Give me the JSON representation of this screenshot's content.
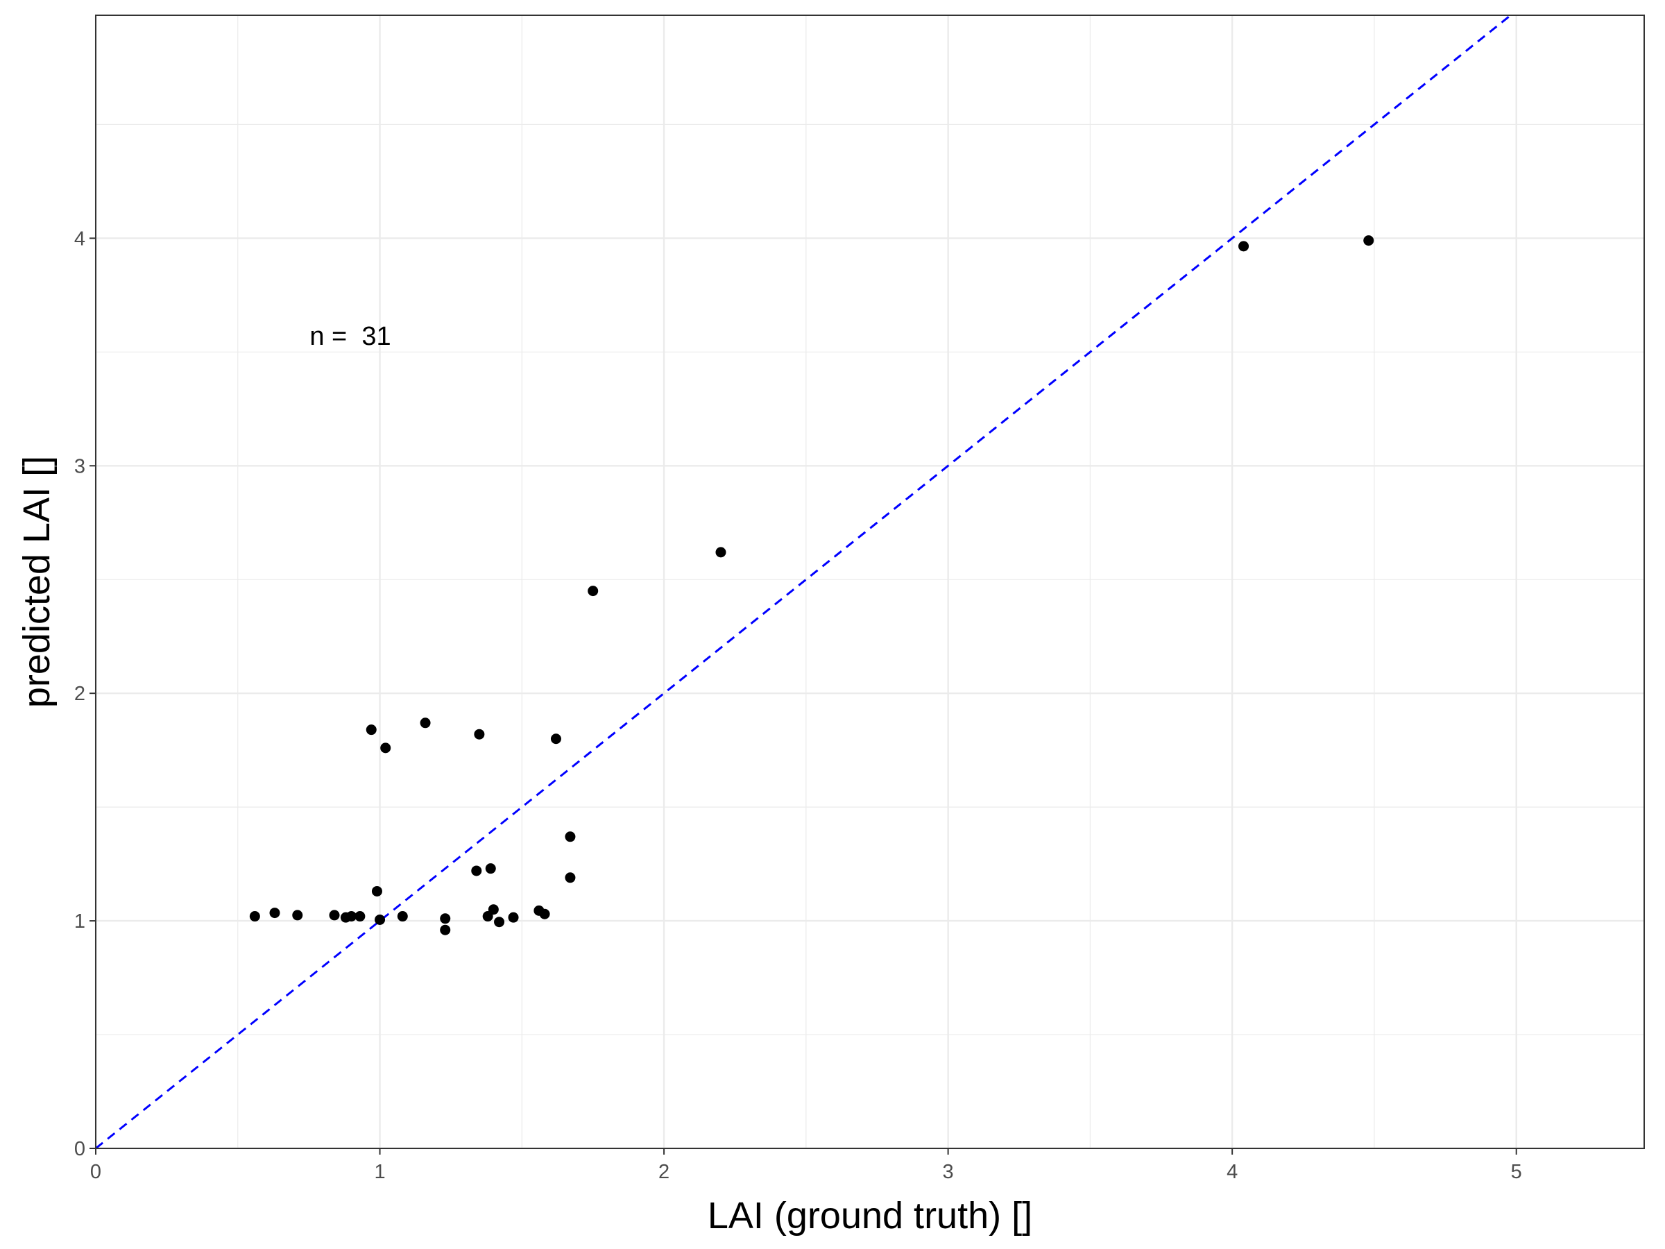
{
  "chart_data": {
    "type": "scatter",
    "title": "",
    "xlabel": "LAI (ground truth) []",
    "ylabel": "predicted LAI []",
    "xlim": [
      0,
      5.45
    ],
    "ylim": [
      0,
      4.98
    ],
    "x_ticks": [
      0,
      1,
      2,
      3,
      4,
      5
    ],
    "y_ticks": [
      0,
      1,
      2,
      3,
      4
    ],
    "x_tick_labels": [
      "0",
      "1",
      "2",
      "3",
      "4",
      "5"
    ],
    "y_tick_labels": [
      "0",
      "1",
      "2",
      "3",
      "4"
    ],
    "grid": true,
    "annotation": "n =  31",
    "reference_line": {
      "kind": "identity y = x",
      "style": "dashed",
      "color": "#0000ff"
    },
    "point_color": "#000000",
    "points": [
      {
        "x": 0.56,
        "y": 1.02
      },
      {
        "x": 0.63,
        "y": 1.035
      },
      {
        "x": 0.71,
        "y": 1.025
      },
      {
        "x": 0.84,
        "y": 1.025
      },
      {
        "x": 0.88,
        "y": 1.015
      },
      {
        "x": 0.9,
        "y": 1.02
      },
      {
        "x": 0.93,
        "y": 1.02
      },
      {
        "x": 0.97,
        "y": 1.84
      },
      {
        "x": 0.99,
        "y": 1.13
      },
      {
        "x": 1.0,
        "y": 1.005
      },
      {
        "x": 1.02,
        "y": 1.76
      },
      {
        "x": 1.08,
        "y": 1.02
      },
      {
        "x": 1.16,
        "y": 1.87
      },
      {
        "x": 1.23,
        "y": 1.01
      },
      {
        "x": 1.23,
        "y": 0.96
      },
      {
        "x": 1.34,
        "y": 1.22
      },
      {
        "x": 1.35,
        "y": 1.82
      },
      {
        "x": 1.38,
        "y": 1.02
      },
      {
        "x": 1.39,
        "y": 1.23
      },
      {
        "x": 1.4,
        "y": 1.05
      },
      {
        "x": 1.42,
        "y": 0.995
      },
      {
        "x": 1.47,
        "y": 1.015
      },
      {
        "x": 1.56,
        "y": 1.045
      },
      {
        "x": 1.58,
        "y": 1.03
      },
      {
        "x": 1.62,
        "y": 1.8
      },
      {
        "x": 1.67,
        "y": 1.37
      },
      {
        "x": 1.67,
        "y": 1.19
      },
      {
        "x": 1.75,
        "y": 2.45
      },
      {
        "x": 2.2,
        "y": 2.62
      },
      {
        "x": 4.04,
        "y": 3.965
      },
      {
        "x": 4.48,
        "y": 3.99
      }
    ]
  }
}
